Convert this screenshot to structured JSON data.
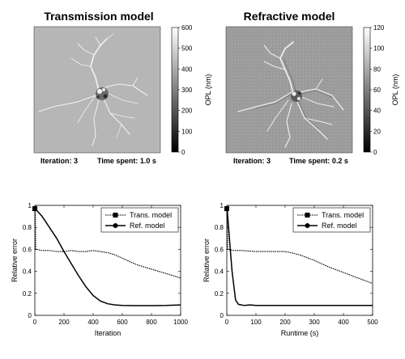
{
  "images": [
    {
      "title": "Transmission model",
      "colorbar": {
        "label": "OPL (nm)",
        "min": 0,
        "max": 600,
        "ticks": [
          0,
          100,
          200,
          300,
          400,
          500,
          600
        ]
      },
      "iteration_text": "Iteration: 3",
      "time_text": "Time spent: 1.0 s",
      "background": "#b6b6b6"
    },
    {
      "title": "Refractive model",
      "colorbar": {
        "label": "OPL (nm)",
        "min": 0,
        "max": 120,
        "ticks": [
          0,
          20,
          40,
          60,
          80,
          100,
          120
        ]
      },
      "iteration_text": "Iteration: 3",
      "time_text": "Time spent: 0.2 s",
      "background": "#9c9c9c"
    }
  ],
  "chart_data": [
    {
      "type": "line",
      "xlabel": "Iteration",
      "ylabel": "Relative error",
      "xlim": [
        0,
        1000
      ],
      "ylim": [
        0,
        1
      ],
      "xticks": [
        0,
        200,
        400,
        600,
        800,
        1000
      ],
      "yticks": [
        0,
        0.2,
        0.4,
        0.6,
        0.8,
        1
      ],
      "ytick_labels": [
        "0",
        "0.2",
        "0.4",
        "0.6",
        "0.8",
        "1"
      ],
      "legend_position": "top-right",
      "series": [
        {
          "name": "Trans. model",
          "style": "dotted-square",
          "x": [
            0,
            3,
            6,
            10,
            50,
            100,
            150,
            200,
            250,
            300,
            350,
            400,
            450,
            500,
            550,
            600,
            650,
            700,
            750,
            800,
            850,
            900,
            950,
            1000
          ],
          "y": [
            0.97,
            0.97,
            0.6,
            0.6,
            0.59,
            0.59,
            0.58,
            0.58,
            0.59,
            0.58,
            0.58,
            0.59,
            0.58,
            0.57,
            0.55,
            0.52,
            0.49,
            0.46,
            0.44,
            0.42,
            0.4,
            0.38,
            0.36,
            0.34
          ]
        },
        {
          "name": "Ref. model",
          "style": "solid-circle",
          "x": [
            0,
            3,
            50,
            100,
            150,
            200,
            250,
            300,
            350,
            400,
            450,
            500,
            550,
            600,
            700,
            800,
            900,
            1000
          ],
          "y": [
            0.97,
            0.97,
            0.9,
            0.8,
            0.7,
            0.58,
            0.47,
            0.36,
            0.26,
            0.18,
            0.13,
            0.105,
            0.095,
            0.09,
            0.088,
            0.088,
            0.09,
            0.095
          ]
        }
      ]
    },
    {
      "type": "line",
      "xlabel": "Runtime (s)",
      "ylabel": "Relative error",
      "xlim": [
        0,
        500
      ],
      "ylim": [
        0,
        1
      ],
      "xticks": [
        0,
        100,
        200,
        300,
        400,
        500
      ],
      "yticks": [
        0,
        0.2,
        0.4,
        0.6,
        0.8,
        1
      ],
      "ytick_labels": [
        "0",
        "0.2",
        "0.4",
        "0.6",
        "0.8",
        "1"
      ],
      "legend_position": "top-right",
      "series": [
        {
          "name": "Trans. model",
          "style": "dotted-square",
          "x": [
            0,
            1,
            3,
            5,
            25,
            50,
            100,
            150,
            200,
            220,
            250,
            300,
            350,
            400,
            450,
            500
          ],
          "y": [
            0.97,
            0.97,
            0.6,
            0.6,
            0.59,
            0.59,
            0.58,
            0.58,
            0.58,
            0.57,
            0.55,
            0.5,
            0.44,
            0.39,
            0.34,
            0.29
          ]
        },
        {
          "name": "Ref. model",
          "style": "solid-circle",
          "x": [
            0,
            1,
            6,
            12,
            18,
            25,
            30,
            40,
            60,
            80,
            100,
            150,
            200,
            300,
            400,
            500
          ],
          "y": [
            0.97,
            0.97,
            0.8,
            0.6,
            0.4,
            0.25,
            0.14,
            0.1,
            0.09,
            0.095,
            0.09,
            0.09,
            0.09,
            0.09,
            0.09,
            0.09
          ]
        }
      ]
    }
  ]
}
